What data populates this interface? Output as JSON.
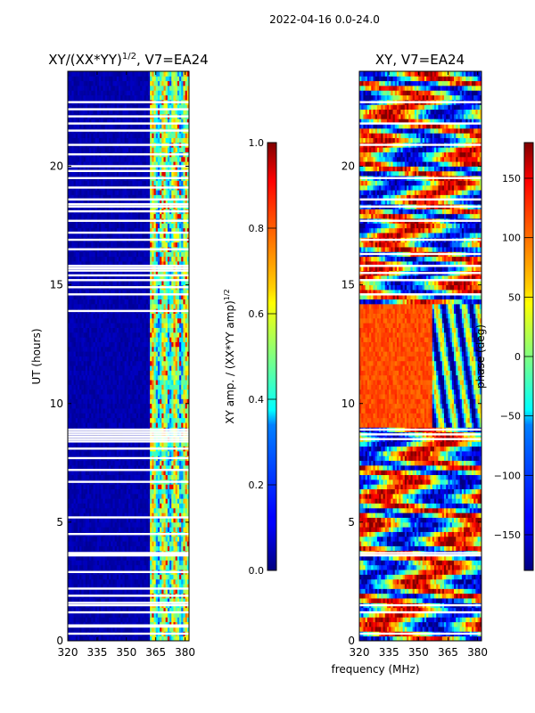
{
  "figure": {
    "suptitle": "2022-04-16 0.0-24.0",
    "shared_xlabel": "frequency (MHz)"
  },
  "chart_data": [
    {
      "type": "heatmap",
      "title_main": "XY/(XX*YY)",
      "title_sup": "1/2",
      "title_tail": ", V7=EA24",
      "xlabel": "",
      "ylabel": "UT (hours)",
      "xlim": [
        320,
        382
      ],
      "ylim": [
        0,
        24
      ],
      "x_ticks": [
        "320",
        "335",
        "350",
        "365",
        "380"
      ],
      "x_tick_values": [
        320,
        335,
        350,
        365,
        380
      ],
      "y_ticks": [
        "0",
        "5",
        "10",
        "15",
        "20"
      ],
      "y_tick_values": [
        0,
        5,
        10,
        15,
        20
      ],
      "colorbar": {
        "label_main": "XY amp. / (XX*YY amp)",
        "label_sup": "1/2",
        "range": [
          0.0,
          1.0
        ],
        "ticks": [
          "0.0",
          "0.2",
          "0.4",
          "0.6",
          "0.8",
          "1.0"
        ],
        "tick_values": [
          0.0,
          0.2,
          0.4,
          0.6,
          0.8,
          1.0
        ],
        "colormap": "jet"
      },
      "flagged_hours": [
        0.3,
        0.6,
        0.65,
        1.2,
        1.5,
        1.6,
        1.9,
        2.2,
        2.9,
        3.6,
        3.65,
        3.7,
        4.5,
        5.2,
        6.7,
        7.2,
        7.7,
        8.1,
        8.4,
        8.5,
        8.6,
        8.7,
        8.8,
        8.9,
        13.9,
        14.6,
        14.9,
        15.2,
        15.4,
        15.6,
        15.7,
        15.8,
        16.5,
        16.9,
        17.2,
        17.7,
        18.1,
        18.3,
        18.4,
        18.6,
        19.1,
        19.5,
        19.8,
        20.0,
        20.5,
        20.9,
        21.5,
        21.8,
        22.1,
        22.4,
        22.7
      ]
    },
    {
      "type": "heatmap",
      "title_main": "XY, V7=EA24",
      "title_sup": "",
      "title_tail": "",
      "xlabel": "frequency (MHz)",
      "ylabel": "",
      "xlim": [
        320,
        382
      ],
      "ylim": [
        0,
        24
      ],
      "x_ticks": [
        "320",
        "335",
        "350",
        "365",
        "380"
      ],
      "x_tick_values": [
        320,
        335,
        350,
        365,
        380
      ],
      "y_ticks": [
        "0",
        "5",
        "10",
        "15",
        "20"
      ],
      "y_tick_values": [
        0,
        5,
        10,
        15,
        20
      ],
      "colorbar": {
        "label_main": "phase (deg)",
        "label_sup": "",
        "range": [
          -180,
          180
        ],
        "ticks": [
          "−150",
          "−100",
          "−50",
          "0",
          "50",
          "100",
          "150"
        ],
        "tick_values": [
          -150,
          -100,
          -50,
          0,
          50,
          100,
          150
        ],
        "colormap": "jet"
      },
      "flagged_hours": [
        0.3,
        1.2,
        1.5,
        3.6,
        3.7,
        8.5,
        8.7,
        8.9,
        14.6,
        15.2,
        15.5,
        15.8,
        16.3,
        16.9,
        17.7,
        18.3,
        18.6,
        19.5,
        20.9,
        21.8,
        22.7
      ]
    }
  ]
}
